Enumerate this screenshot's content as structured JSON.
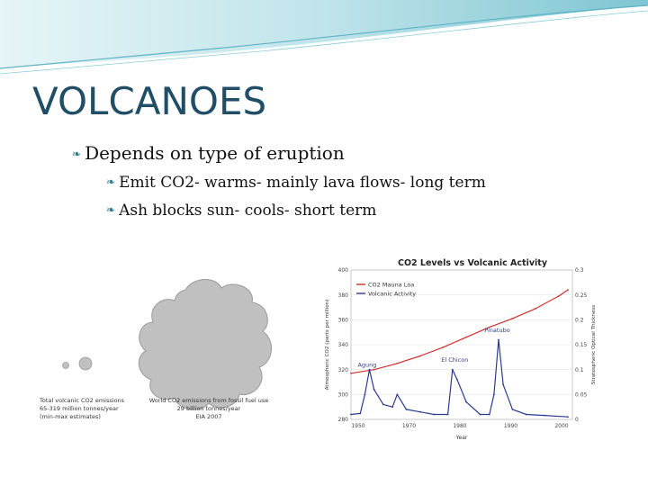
{
  "slide": {
    "title": "VOLCANOES",
    "bullets": {
      "level1": "Depends on type of eruption",
      "level2": [
        "Emit CO2- warms- mainly lava flows- long term",
        "Ash blocks sun- cools- short term"
      ]
    }
  },
  "bubble_figure": {
    "left_caption": [
      "Total volcanic CO2 emissions",
      "65-319 million tonnes/year",
      "(min-max estimates)"
    ],
    "right_caption": [
      "World CO2 emissions from fossil fuel use",
      "29 billion tonnes/year",
      "EIA 2007"
    ],
    "colors": {
      "bubble": "#c0c0c0",
      "stroke": "#9a9a9a"
    }
  },
  "chart_data": {
    "type": "line",
    "title": "CO2 Levels vs Volcanic Activity",
    "xlabel": "Year",
    "ylabel_left": "Atmospheric CO2 (parts per million)",
    "ylabel_right": "Stratospheric Optical Thickness",
    "x_ticks": [
      "1950",
      "1970",
      "1980",
      "1990",
      "2000"
    ],
    "y_left_ticks": [
      "400",
      "380",
      "360",
      "340",
      "320",
      "300",
      "280"
    ],
    "y_right_ticks": [
      "0.3",
      "0.25",
      "0.2",
      "0.15",
      "0.1",
      "0.05",
      "0"
    ],
    "xlim": [
      1960,
      2008
    ],
    "ylim_left": [
      280,
      400
    ],
    "ylim_right": [
      0,
      0.3
    ],
    "legend": {
      "placement": "top-left",
      "entries": [
        "CO2 Mauna Loa",
        "Volcanic Activity"
      ]
    },
    "series": [
      {
        "name": "CO2 Mauna Loa",
        "axis": "left",
        "color": "#d0312d",
        "x": [
          1960,
          1965,
          1970,
          1975,
          1980,
          1985,
          1990,
          1995,
          2000,
          2005,
          2007
        ],
        "y": [
          317,
          320,
          325,
          331,
          338,
          346,
          354,
          361,
          369,
          379,
          384
        ]
      },
      {
        "name": "Volcanic Activity",
        "axis": "right",
        "color": "#2b3a8f",
        "x": [
          1960,
          1962,
          1963,
          1964,
          1965,
          1967,
          1969,
          1970,
          1972,
          1975,
          1978,
          1981,
          1982,
          1983,
          1985,
          1988,
          1990,
          1991,
          1992,
          1993,
          1995,
          1998,
          2002,
          2007
        ],
        "y": [
          0.01,
          0.012,
          0.05,
          0.1,
          0.06,
          0.03,
          0.025,
          0.05,
          0.02,
          0.015,
          0.01,
          0.01,
          0.1,
          0.08,
          0.035,
          0.01,
          0.01,
          0.05,
          0.16,
          0.07,
          0.02,
          0.01,
          0.008,
          0.005
        ]
      }
    ],
    "annotations": [
      {
        "text": "Agung",
        "x": 1963.5,
        "y": 0.1
      },
      {
        "text": "El Chicon",
        "x": 1982.5,
        "y": 0.11
      },
      {
        "text": "Pinatubo",
        "x": 1991.7,
        "y": 0.17
      }
    ]
  }
}
